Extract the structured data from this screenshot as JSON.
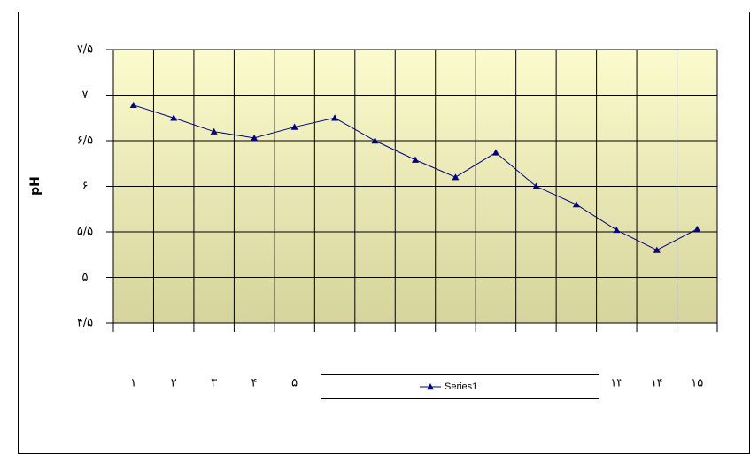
{
  "chart_data": {
    "type": "line",
    "y_label": "pH",
    "categories": [
      "۱",
      "۲",
      "۳",
      "۴",
      "۵",
      null,
      null,
      null,
      null,
      null,
      null,
      null,
      "۱۳",
      "۱۴",
      "۱۵"
    ],
    "series": [
      {
        "name": "Series1",
        "color": "#000080",
        "values": [
          6.89,
          6.75,
          6.6,
          6.53,
          6.65,
          6.75,
          6.5,
          6.29,
          6.1,
          6.37,
          6.0,
          5.8,
          5.52,
          5.3,
          5.53
        ]
      }
    ],
    "ylim": [
      4.5,
      7.5
    ],
    "yticks": [
      {
        "value": 4.5,
        "label": "۴/۵"
      },
      {
        "value": 5,
        "label": "۵"
      },
      {
        "value": 5.5,
        "label": "۵/۵"
      },
      {
        "value": 6,
        "label": "۶"
      },
      {
        "value": 6.5,
        "label": "۶/۵"
      },
      {
        "value": 7,
        "label": "۷"
      },
      {
        "value": 7.5,
        "label": "۷/۵"
      }
    ],
    "grid": true,
    "legend": "bottom"
  }
}
